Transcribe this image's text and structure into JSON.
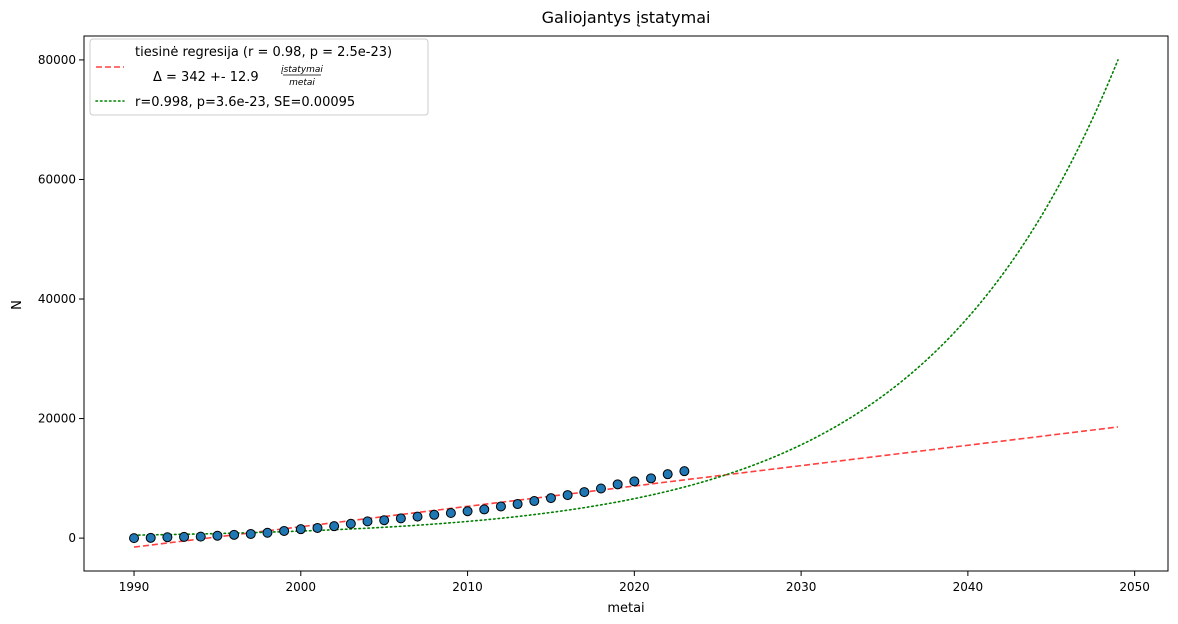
{
  "chart_data": {
    "type": "scatter",
    "title": "Galiojantys įstatymai",
    "xlabel": "metai",
    "ylabel": "N",
    "xlim": [
      1987,
      2052
    ],
    "ylim": [
      -5500,
      84000
    ],
    "xticks": [
      1990,
      2000,
      2010,
      2020,
      2030,
      2040,
      2050
    ],
    "yticks": [
      0,
      20000,
      40000,
      60000,
      80000
    ],
    "grid": false,
    "legend_position": "top-left",
    "legend": {
      "linear_label_line1": "tiesinė regresija (r = 0.98,    p = 2.5e-23)",
      "linear_label_line2": "Δ =  342 +- 12.9",
      "linear_unit_numerator": "įstatymai",
      "linear_unit_denominator": "metai",
      "exp_label": "r=0.998, p=3.6e-23, SE=0.00095"
    },
    "points": {
      "name": "",
      "color": "#1f77b4",
      "x": [
        1990,
        1991,
        1992,
        1993,
        1994,
        1995,
        1996,
        1997,
        1998,
        1999,
        2000,
        2001,
        2002,
        2003,
        2004,
        2005,
        2006,
        2007,
        2008,
        2009,
        2010,
        2011,
        2012,
        2013,
        2014,
        2015,
        2016,
        2017,
        2018,
        2019,
        2020,
        2021,
        2022,
        2023
      ],
      "y": [
        0,
        50,
        150,
        200,
        250,
        400,
        550,
        700,
        900,
        1200,
        1500,
        1700,
        2000,
        2400,
        2800,
        3000,
        3300,
        3600,
        3900,
        4200,
        4500,
        4800,
        5300,
        5700,
        6200,
        6700,
        7200,
        7700,
        8300,
        9000,
        9500,
        10000,
        10700,
        11200
      ]
    },
    "series": [
      {
        "name": "tiesinė regresija",
        "style": "dashed",
        "color": "#ff4040",
        "x": [
          1990,
          2049
        ],
        "y": [
          -1500,
          18600
        ]
      },
      {
        "name": "r=0.998, p=3.6e-23, SE=0.00095",
        "style": "dotted",
        "color": "#008000",
        "model": "exponential",
        "x_range": [
          1990,
          2049
        ],
        "anchors": [
          [
            1990,
            500
          ],
          [
            2049,
            80000
          ]
        ]
      }
    ]
  }
}
